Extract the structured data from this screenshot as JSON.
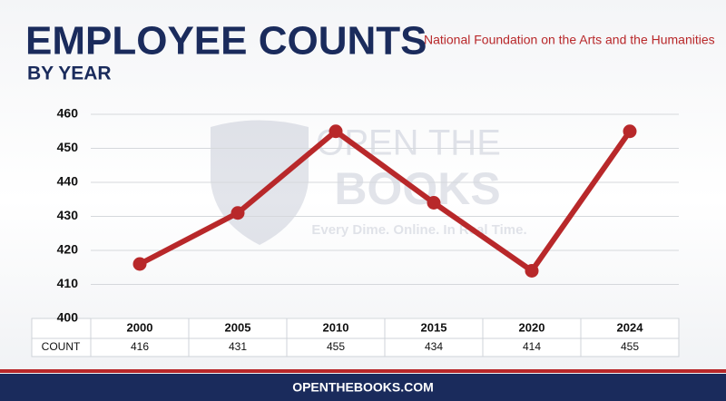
{
  "chart_data": {
    "type": "line",
    "title": "EMPLOYEE COUNTS",
    "subtitle": "BY YEAR",
    "agency": "National Foundation on the Arts and the Humanities",
    "categories": [
      "2000",
      "2005",
      "2010",
      "2015",
      "2020",
      "2024"
    ],
    "values": [
      416,
      431,
      455,
      434,
      414,
      455
    ],
    "color": "#b8282a",
    "row_label": "COUNT",
    "ylim": [
      400,
      460
    ],
    "yticks": [
      400,
      410,
      420,
      430,
      440,
      450,
      460
    ],
    "grid": true,
    "watermark": [
      "OPEN THE",
      "BOOKS",
      "Every Dime. Online. In Real Time."
    ],
    "footer": "OPENTHEBOOKS.COM"
  }
}
